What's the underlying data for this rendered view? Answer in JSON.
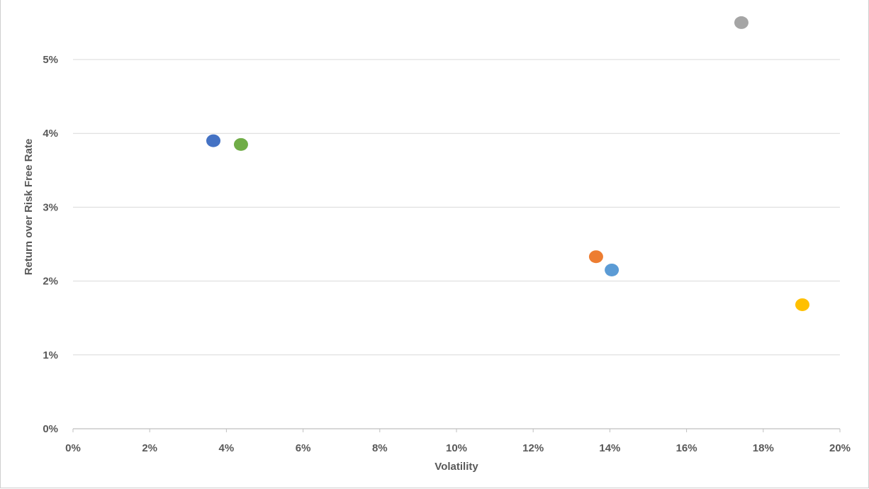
{
  "chart_data": {
    "type": "scatter",
    "title": "",
    "xlabel": "Volatility",
    "ylabel": "Return over Risk Free Rate",
    "xlim": [
      0,
      0.2
    ],
    "ylim": [
      0,
      0.055
    ],
    "x_ticks": [
      "0%",
      "2%",
      "4%",
      "6%",
      "8%",
      "10%",
      "12%",
      "14%",
      "16%",
      "18%",
      "20%"
    ],
    "y_ticks": [
      "0%",
      "1%",
      "2%",
      "3%",
      "4%",
      "5%"
    ],
    "grid": "horizontal",
    "legend": "none",
    "points": [
      {
        "x": 0.0366,
        "y": 0.039,
        "color": "#4472c4"
      },
      {
        "x": 0.0438,
        "y": 0.0385,
        "color": "#70ad47"
      },
      {
        "x": 0.1364,
        "y": 0.0233,
        "color": "#ed7d31"
      },
      {
        "x": 0.1405,
        "y": 0.0215,
        "color": "#5b9bd5"
      },
      {
        "x": 0.1743,
        "y": 0.055,
        "color": "#a5a5a5"
      },
      {
        "x": 0.1902,
        "y": 0.0168,
        "color": "#ffc000"
      }
    ]
  }
}
